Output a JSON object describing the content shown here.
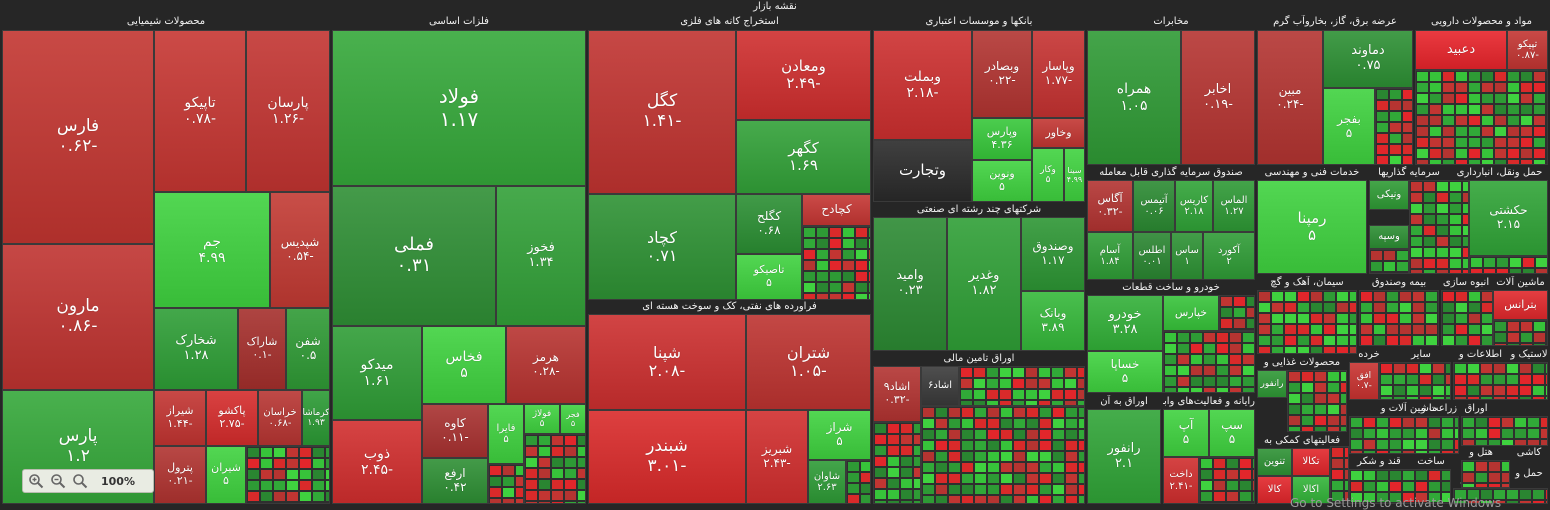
{
  "title": "نقشه بازار",
  "headers": [
    {
      "text": "محصولات شیمیایی",
      "l": 2,
      "t": 15,
      "w": 328
    },
    {
      "text": "فلزات اساسی",
      "l": 332,
      "t": 15,
      "w": 254
    },
    {
      "text": "استخراج کانه های فلزی",
      "l": 588,
      "t": 15,
      "w": 283
    },
    {
      "text": "بانکها و موسسات اعتباری",
      "l": 873,
      "t": 15,
      "w": 212
    },
    {
      "text": "مخابرات",
      "l": 1087,
      "t": 15,
      "w": 168
    },
    {
      "text": "عرضه برق، گاز، بخاروآب گرم",
      "l": 1257,
      "t": 15,
      "w": 156
    },
    {
      "text": "مواد و محصولات دارویی",
      "l": 1415,
      "t": 15,
      "w": 133
    },
    {
      "text": "فراورده های نفتی، کک و سوخت هسته ای",
      "l": 588,
      "t": 300,
      "w": 283
    },
    {
      "text": "شرکتهای چند رشته ای صنعتی",
      "l": 873,
      "t": 203,
      "w": 212
    },
    {
      "text": "اوراق تامین مالی",
      "l": 873,
      "t": 352,
      "w": 212
    },
    {
      "text": "صندوق سرمایه گذاری قابل معامله",
      "l": 1087,
      "t": 166,
      "w": 168
    },
    {
      "text": "خدمات فنی و مهندسی",
      "l": 1257,
      "t": 166,
      "w": 110
    },
    {
      "text": "سرمایه گذاریها",
      "l": 1369,
      "t": 166,
      "w": 80
    },
    {
      "text": "حمل ونقل، انبارداری",
      "l": 1451,
      "t": 166,
      "w": 97
    },
    {
      "text": "خودرو و ساخت قطعات",
      "l": 1087,
      "t": 281,
      "w": 168
    },
    {
      "text": "سیمان، آهک و گچ",
      "l": 1257,
      "t": 276,
      "w": 100
    },
    {
      "text": "بیمه وصندوق",
      "l": 1359,
      "t": 276,
      "w": 80
    },
    {
      "text": "انبوه سازی",
      "l": 1441,
      "t": 276,
      "w": 50
    },
    {
      "text": "ماشین آلات",
      "l": 1493,
      "t": 276,
      "w": 55
    },
    {
      "text": "رایانه و فعالیت‌های وابسته به آن",
      "l": 1163,
      "t": 395,
      "w": 92
    },
    {
      "text": "محصولات غذایی و",
      "l": 1257,
      "t": 356,
      "w": 90
    },
    {
      "text": "خرده",
      "l": 1349,
      "t": 348,
      "w": 40
    },
    {
      "text": "سایر",
      "l": 1391,
      "t": 348,
      "w": 60
    },
    {
      "text": "اطلاعات و",
      "l": 1453,
      "t": 348,
      "w": 55
    },
    {
      "text": "لاستیک و",
      "l": 1510,
      "t": 348,
      "w": 38
    },
    {
      "text": "اوراق به آن",
      "l": 1087,
      "t": 395,
      "w": 74
    },
    {
      "text": "فعالیتهای کمکی به",
      "l": 1257,
      "t": 434,
      "w": 90
    },
    {
      "text": "زراعت و",
      "l": 1419,
      "t": 402,
      "w": 40
    },
    {
      "text": "ماشین آلات و",
      "l": 1379,
      "t": 402,
      "w": 60
    },
    {
      "text": "اوراق",
      "l": 1461,
      "t": 402,
      "w": 30
    },
    {
      "text": "قند و شکر",
      "l": 1349,
      "t": 455,
      "w": 60
    },
    {
      "text": "ساخت",
      "l": 1411,
      "t": 455,
      "w": 40
    },
    {
      "text": "هتل و",
      "l": 1461,
      "t": 446,
      "w": 40
    },
    {
      "text": "کاشی",
      "l": 1510,
      "t": 446,
      "w": 38
    },
    {
      "text": "محصولات",
      "l": 1453,
      "t": 476,
      "w": 55
    },
    {
      "text": "حمل و",
      "l": 1510,
      "t": 467,
      "w": 38
    }
  ],
  "tiles": [
    {
      "sym": "فارس",
      "val": "-۰.۶۲",
      "c": "#c23530",
      "l": 2,
      "t": 30,
      "w": 152,
      "h": 214,
      "fs": 17
    },
    {
      "sym": "مارون",
      "val": "-۰.۸۶",
      "c": "#bf3330",
      "l": 2,
      "t": 244,
      "w": 152,
      "h": 146,
      "fs": 17
    },
    {
      "sym": "پارس",
      "val": "۱.۲",
      "c": "#35a83a",
      "l": 2,
      "t": 390,
      "w": 152,
      "h": 114,
      "fs": 17
    },
    {
      "sym": "تاپیکو",
      "val": "-۰.۷۸",
      "c": "#c63632",
      "l": 154,
      "t": 30,
      "w": 92,
      "h": 162,
      "fs": 14
    },
    {
      "sym": "پارسان",
      "val": "-۱.۲۶",
      "c": "#c23431",
      "l": 246,
      "t": 30,
      "w": 84,
      "h": 162,
      "fs": 14
    },
    {
      "sym": "جم",
      "val": "۴.۹۹",
      "c": "#3fd23f",
      "l": 154,
      "t": 192,
      "w": 116,
      "h": 116,
      "fs": 14
    },
    {
      "sym": "شپدیس",
      "val": "-۰.۵۴",
      "c": "#c23a33",
      "l": 270,
      "t": 192,
      "w": 60,
      "h": 116,
      "fs": 12
    },
    {
      "sym": "شخارک",
      "val": "۱.۲۸",
      "c": "#2e9e36",
      "l": 154,
      "t": 308,
      "w": 84,
      "h": 82,
      "fs": 13
    },
    {
      "sym": "شاراک",
      "val": "-۰.۱",
      "c": "#a52f2c",
      "l": 238,
      "t": 308,
      "w": 48,
      "h": 82,
      "fs": 11
    },
    {
      "sym": "شفن",
      "val": "۰.۵",
      "c": "#2f9a35",
      "l": 286,
      "t": 308,
      "w": 44,
      "h": 82,
      "fs": 12
    },
    {
      "sym": "شیراز",
      "val": "-۱.۴۴",
      "c": "#c23431",
      "l": 154,
      "t": 390,
      "w": 52,
      "h": 56,
      "fs": 11
    },
    {
      "sym": "پاکشو",
      "val": "-۲.۷۵",
      "c": "#d52c2c",
      "l": 206,
      "t": 390,
      "w": 52,
      "h": 56,
      "fs": 11
    },
    {
      "sym": "خراسان",
      "val": "-۰.۶۸",
      "c": "#b73532",
      "l": 258,
      "t": 390,
      "w": 44,
      "h": 56,
      "fs": 10
    },
    {
      "sym": "کرماشا",
      "val": "۱.۹۳",
      "c": "#2b9a34",
      "l": 302,
      "t": 390,
      "w": 28,
      "h": 56,
      "fs": 9
    },
    {
      "sym": "پترول",
      "val": "-۰.۲۱",
      "c": "#b03330",
      "l": 154,
      "t": 446,
      "w": 52,
      "h": 58,
      "fs": 11
    },
    {
      "sym": "شیران",
      "val": "۵",
      "c": "#3fd23f",
      "l": 206,
      "t": 446,
      "w": 40,
      "h": 58,
      "fs": 11
    },
    {
      "sym": "فولاد",
      "val": "۱.۱۷",
      "c": "#35a83a",
      "l": 332,
      "t": 30,
      "w": 254,
      "h": 156,
      "fs": 20
    },
    {
      "sym": "فملی",
      "val": "۰.۳۱",
      "c": "#2f8f35",
      "l": 332,
      "t": 186,
      "w": 164,
      "h": 140,
      "fs": 18
    },
    {
      "sym": "فخوز",
      "val": "۱.۳۴",
      "c": "#32a038",
      "l": 496,
      "t": 186,
      "w": 90,
      "h": 140,
      "fs": 13
    },
    {
      "sym": "میدکو",
      "val": "۱.۶۱",
      "c": "#2f9d36",
      "l": 332,
      "t": 326,
      "w": 90,
      "h": 94,
      "fs": 14
    },
    {
      "sym": "فخاس",
      "val": "۵",
      "c": "#3fd23f",
      "l": 422,
      "t": 326,
      "w": 84,
      "h": 78,
      "fs": 14
    },
    {
      "sym": "هرمز",
      "val": "-۰.۲۸",
      "c": "#b73330",
      "l": 506,
      "t": 326,
      "w": 80,
      "h": 78,
      "fs": 12
    },
    {
      "sym": "ذوب",
      "val": "-۲.۴۵",
      "c": "#d12e2e",
      "l": 332,
      "t": 420,
      "w": 90,
      "h": 84,
      "fs": 14
    },
    {
      "sym": "کاوه",
      "val": "-۰.۱۱",
      "c": "#a83130",
      "l": 422,
      "t": 404,
      "w": 66,
      "h": 54,
      "fs": 12
    },
    {
      "sym": "ارفع",
      "val": "۰.۴۲",
      "c": "#2e8f34",
      "l": 422,
      "t": 458,
      "w": 66,
      "h": 46,
      "fs": 12
    },
    {
      "sym": "فایرا",
      "val": "۵",
      "c": "#3fd23f",
      "l": 488,
      "t": 404,
      "w": 36,
      "h": 60,
      "fs": 10
    },
    {
      "sym": "فولاژ",
      "val": "۵",
      "c": "#3fd23f",
      "l": 524,
      "t": 404,
      "w": 36,
      "h": 30,
      "fs": 9
    },
    {
      "sym": "فجر",
      "val": "۵",
      "c": "#3fd23f",
      "l": 560,
      "t": 404,
      "w": 26,
      "h": 30,
      "fs": 8
    },
    {
      "sym": "کگل",
      "val": "-۱.۴۱",
      "c": "#c03330",
      "l": 588,
      "t": 30,
      "w": 148,
      "h": 164,
      "fs": 17
    },
    {
      "sym": "ومعادن",
      "val": "-۲.۴۹",
      "c": "#cf2e2e",
      "l": 736,
      "t": 30,
      "w": 135,
      "h": 90,
      "fs": 15
    },
    {
      "sym": "کگهر",
      "val": "۱.۶۹",
      "c": "#32a138",
      "l": 736,
      "t": 120,
      "w": 135,
      "h": 74,
      "fs": 15
    },
    {
      "sym": "کچاد",
      "val": "۰.۷۱",
      "c": "#2e9234",
      "l": 588,
      "t": 194,
      "w": 148,
      "h": 106,
      "fs": 16
    },
    {
      "sym": "کگلح",
      "val": "۰.۶۸",
      "c": "#2b8f33",
      "l": 736,
      "t": 194,
      "w": 66,
      "h": 60,
      "fs": 12
    },
    {
      "sym": "کچادح",
      "val": "",
      "c": "#c53633",
      "l": 802,
      "t": 194,
      "w": 69,
      "h": 32,
      "fs": 12
    },
    {
      "sym": "تاصیکو",
      "val": "۵",
      "c": "#3fd23f",
      "l": 736,
      "t": 254,
      "w": 66,
      "h": 46,
      "fs": 11
    },
    {
      "sym": "شپنا",
      "val": "-۲.۰۸",
      "c": "#cc2f2f",
      "l": 588,
      "t": 314,
      "w": 158,
      "h": 96,
      "fs": 16
    },
    {
      "sym": "شتران",
      "val": "-۱.۰۵",
      "c": "#bd3330",
      "l": 746,
      "t": 314,
      "w": 125,
      "h": 96,
      "fs": 16
    },
    {
      "sym": "شبندر",
      "val": "-۳.۰۱",
      "c": "#d92a2a",
      "l": 588,
      "t": 410,
      "w": 158,
      "h": 94,
      "fs": 17
    },
    {
      "sym": "شبریز",
      "val": "-۲.۴۳",
      "c": "#d12e2e",
      "l": 746,
      "t": 410,
      "w": 62,
      "h": 94,
      "fs": 12
    },
    {
      "sym": "شراز",
      "val": "۵",
      "c": "#3fd23f",
      "l": 808,
      "t": 410,
      "w": 63,
      "h": 50,
      "fs": 12
    },
    {
      "sym": "شاوان",
      "val": "۲.۶۳",
      "c": "#2e9b36",
      "l": 808,
      "t": 460,
      "w": 38,
      "h": 44,
      "fs": 10
    },
    {
      "sym": "وبملت",
      "val": "-۲.۱۸",
      "c": "#cc2f2f",
      "l": 873,
      "t": 30,
      "w": 99,
      "h": 110,
      "fs": 14
    },
    {
      "sym": "وبصادر",
      "val": "-۰.۲۲",
      "c": "#b23431",
      "l": 972,
      "t": 30,
      "w": 60,
      "h": 88,
      "fs": 12
    },
    {
      "sym": "وپاسار",
      "val": "-۱.۷۷",
      "c": "#c53231",
      "l": 1032,
      "t": 30,
      "w": 53,
      "h": 88,
      "fs": 12
    },
    {
      "sym": "وتجارت",
      "val": "",
      "c": "#2a2a2a",
      "l": 873,
      "t": 140,
      "w": 99,
      "h": 62,
      "fs": 15
    },
    {
      "sym": "وپارس",
      "val": "۴.۳۶",
      "c": "#37c73a",
      "l": 972,
      "t": 118,
      "w": 60,
      "h": 42,
      "fs": 11
    },
    {
      "sym": "وخاور",
      "val": "",
      "c": "#c23632",
      "l": 1032,
      "t": 118,
      "w": 53,
      "h": 30,
      "fs": 11
    },
    {
      "sym": "ونوین",
      "val": "۵",
      "c": "#3fd23f",
      "l": 972,
      "t": 160,
      "w": 60,
      "h": 42,
      "fs": 11
    },
    {
      "sym": "وکار",
      "val": "۵",
      "c": "#3fd23f",
      "l": 1032,
      "t": 148,
      "w": 32,
      "h": 54,
      "fs": 9
    },
    {
      "sym": "سینا",
      "val": "۴.۹۹",
      "c": "#3fd23f",
      "l": 1064,
      "t": 148,
      "w": 21,
      "h": 54,
      "fs": 8
    },
    {
      "sym": "وامید",
      "val": "۰.۲۳",
      "c": "#2c8a33",
      "l": 873,
      "t": 217,
      "w": 74,
      "h": 134,
      "fs": 13
    },
    {
      "sym": "وغدیر",
      "val": "۱.۸۲",
      "c": "#2f9f36",
      "l": 947,
      "t": 217,
      "w": 74,
      "h": 134,
      "fs": 13
    },
    {
      "sym": "وصندوق",
      "val": "۱.۱۷",
      "c": "#2d9634",
      "l": 1021,
      "t": 217,
      "w": 64,
      "h": 74,
      "fs": 12
    },
    {
      "sym": "وبانک",
      "val": "۳.۸۹",
      "c": "#35b83a",
      "l": 1021,
      "t": 291,
      "w": 64,
      "h": 60,
      "fs": 12
    },
    {
      "sym": "اشاد۹",
      "val": "-۰.۳۲",
      "c": "#b23331",
      "l": 873,
      "t": 366,
      "w": 48,
      "h": 56,
      "fs": 11
    },
    {
      "sym": "اشاد۶",
      "val": "",
      "c": "#3a3a3a",
      "l": 921,
      "t": 366,
      "w": 38,
      "h": 40,
      "fs": 10
    },
    {
      "sym": "همراه",
      "val": "۱.۰۵",
      "c": "#2f9a35",
      "l": 1087,
      "t": 30,
      "w": 94,
      "h": 135,
      "fs": 14
    },
    {
      "sym": "اخابر",
      "val": "-۰.۱۹",
      "c": "#b53431",
      "l": 1181,
      "t": 30,
      "w": 74,
      "h": 135,
      "fs": 13
    },
    {
      "sym": "آگاس",
      "val": "-۰.۳۲",
      "c": "#b23331",
      "l": 1087,
      "t": 180,
      "w": 46,
      "h": 52,
      "fs": 11
    },
    {
      "sym": "آتیمس",
      "val": "۰.۰۶",
      "c": "#2b8a32",
      "l": 1133,
      "t": 180,
      "w": 42,
      "h": 52,
      "fs": 10
    },
    {
      "sym": "کاریس",
      "val": "۲.۱۸",
      "c": "#30a337",
      "l": 1175,
      "t": 180,
      "w": 38,
      "h": 52,
      "fs": 10
    },
    {
      "sym": "الماس",
      "val": "۱.۲۷",
      "c": "#2e9935",
      "l": 1213,
      "t": 180,
      "w": 42,
      "h": 52,
      "fs": 10
    },
    {
      "sym": "آسام",
      "val": "۱.۸۴",
      "c": "#2f9d36",
      "l": 1087,
      "t": 232,
      "w": 46,
      "h": 48,
      "fs": 10
    },
    {
      "sym": "اطلس",
      "val": "۰.۰۱",
      "c": "#2a8631",
      "l": 1133,
      "t": 232,
      "w": 38,
      "h": 48,
      "fs": 10
    },
    {
      "sym": "ساس",
      "val": "۱",
      "c": "#2d9234",
      "l": 1171,
      "t": 232,
      "w": 32,
      "h": 48,
      "fs": 10
    },
    {
      "sym": "آکورد",
      "val": "۲",
      "c": "#2f9c36",
      "l": 1203,
      "t": 232,
      "w": 52,
      "h": 48,
      "fs": 10
    },
    {
      "sym": "خودرو",
      "val": "۳.۲۸",
      "c": "#32b038",
      "l": 1087,
      "t": 295,
      "w": 76,
      "h": 56,
      "fs": 13
    },
    {
      "sym": "خپارس",
      "val": "",
      "c": "#37c33a",
      "l": 1163,
      "t": 295,
      "w": 56,
      "h": 36,
      "fs": 11
    },
    {
      "sym": "خساپا",
      "val": "۵",
      "c": "#3fd23f",
      "l": 1087,
      "t": 351,
      "w": 76,
      "h": 42,
      "fs": 12
    },
    {
      "sym": "رانفور",
      "val": "۲.۱",
      "c": "#30a437",
      "l": 1087,
      "t": 409,
      "w": 74,
      "h": 95,
      "fs": 13
    },
    {
      "sym": "آپ",
      "val": "۵",
      "c": "#3fd23f",
      "l": 1163,
      "t": 409,
      "w": 46,
      "h": 48,
      "fs": 12
    },
    {
      "sym": "سپ",
      "val": "۵",
      "c": "#3fd23f",
      "l": 1209,
      "t": 409,
      "w": 46,
      "h": 48,
      "fs": 12
    },
    {
      "sym": "داخت",
      "val": "-۲.۴۱",
      "c": "#d02e2e",
      "l": 1163,
      "t": 457,
      "w": 36,
      "h": 47,
      "fs": 10
    },
    {
      "sym": "مبین",
      "val": "-۰.۲۴",
      "c": "#b33431",
      "l": 1257,
      "t": 30,
      "w": 66,
      "h": 135,
      "fs": 12
    },
    {
      "sym": "دماوند",
      "val": "۰.۷۵",
      "c": "#2d9034",
      "l": 1323,
      "t": 30,
      "w": 90,
      "h": 58,
      "fs": 13
    },
    {
      "sym": "بفجر",
      "val": "۵",
      "c": "#3fd23f",
      "l": 1323,
      "t": 88,
      "w": 52,
      "h": 77,
      "fs": 12
    },
    {
      "sym": "رمپنا",
      "val": "۵",
      "c": "#3fd23f",
      "l": 1257,
      "t": 180,
      "w": 110,
      "h": 94,
      "fs": 15
    },
    {
      "sym": "حکشتی",
      "val": "۲.۱۵",
      "c": "#30a437",
      "l": 1469,
      "t": 180,
      "w": 79,
      "h": 76,
      "fs": 12
    },
    {
      "sym": "ونیکی",
      "val": "",
      "c": "#2f9b35",
      "l": 1369,
      "t": 180,
      "w": 40,
      "h": 30,
      "fs": 10
    },
    {
      "sym": "وسپه",
      "val": "",
      "c": "#2c8e33",
      "l": 1369,
      "t": 225,
      "w": 40,
      "h": 24,
      "fs": 10
    },
    {
      "sym": "دعبید",
      "val": "",
      "c": "#e8242b",
      "l": 1415,
      "t": 30,
      "w": 92,
      "h": 40,
      "fs": 13
    },
    {
      "sym": "تپیکو",
      "val": "-۰.۸۷",
      "c": "#c33532",
      "l": 1507,
      "t": 30,
      "w": 41,
      "h": 40,
      "fs": 10
    },
    {
      "sym": "بترانس",
      "val": "",
      "c": "#e0282c",
      "l": 1493,
      "t": 290,
      "w": 55,
      "h": 30,
      "fs": 11
    },
    {
      "sym": "افق",
      "val": "-۰.۷",
      "c": "#c83230",
      "l": 1349,
      "t": 362,
      "w": 30,
      "h": 38,
      "fs": 9
    },
    {
      "sym": "تکالا",
      "val": "",
      "c": "#e2262b",
      "l": 1292,
      "t": 448,
      "w": 38,
      "h": 28,
      "fs": 10
    },
    {
      "sym": "تنوین",
      "val": "",
      "c": "#2d9134",
      "l": 1257,
      "t": 448,
      "w": 35,
      "h": 28,
      "fs": 10
    },
    {
      "sym": "کالا",
      "val": "",
      "c": "#e2262b",
      "l": 1257,
      "t": 476,
      "w": 35,
      "h": 28,
      "fs": 10
    },
    {
      "sym": "اکالا",
      "val": "",
      "c": "#33b439",
      "l": 1292,
      "t": 476,
      "w": 38,
      "h": 28,
      "fs": 10
    },
    {
      "sym": "رانفور",
      "val": "",
      "c": "#2e9835",
      "l": 1257,
      "t": 370,
      "w": 30,
      "h": 28,
      "fs": 9
    }
  ],
  "mosaics": [
    {
      "l": 246,
      "t": 446,
      "w": 84,
      "h": 58
    },
    {
      "l": 524,
      "t": 434,
      "w": 62,
      "h": 70
    },
    {
      "l": 488,
      "t": 464,
      "w": 36,
      "h": 40
    },
    {
      "l": 802,
      "t": 226,
      "w": 69,
      "h": 74
    },
    {
      "l": 846,
      "t": 460,
      "w": 25,
      "h": 44
    },
    {
      "l": 921,
      "t": 406,
      "w": 164,
      "h": 98
    },
    {
      "l": 959,
      "t": 366,
      "w": 126,
      "h": 40
    },
    {
      "l": 873,
      "t": 422,
      "w": 48,
      "h": 82
    },
    {
      "l": 1163,
      "t": 331,
      "w": 92,
      "h": 62
    },
    {
      "l": 1219,
      "t": 295,
      "w": 36,
      "h": 36
    },
    {
      "l": 1199,
      "t": 457,
      "w": 56,
      "h": 47
    },
    {
      "l": 1375,
      "t": 88,
      "w": 38,
      "h": 77
    },
    {
      "l": 1415,
      "t": 70,
      "w": 133,
      "h": 95
    },
    {
      "l": 1409,
      "t": 180,
      "w": 60,
      "h": 94
    },
    {
      "l": 1369,
      "t": 249,
      "w": 40,
      "h": 25
    },
    {
      "l": 1469,
      "t": 256,
      "w": 79,
      "h": 18
    },
    {
      "l": 1257,
      "t": 290,
      "w": 100,
      "h": 64
    },
    {
      "l": 1359,
      "t": 290,
      "w": 80,
      "h": 56
    },
    {
      "l": 1441,
      "t": 290,
      "w": 52,
      "h": 56
    },
    {
      "l": 1493,
      "t": 320,
      "w": 55,
      "h": 26
    },
    {
      "l": 1287,
      "t": 370,
      "w": 60,
      "h": 62
    },
    {
      "l": 1379,
      "t": 362,
      "w": 72,
      "h": 38
    },
    {
      "l": 1453,
      "t": 362,
      "w": 95,
      "h": 38
    },
    {
      "l": 1349,
      "t": 416,
      "w": 110,
      "h": 38
    },
    {
      "l": 1461,
      "t": 416,
      "w": 87,
      "h": 30
    },
    {
      "l": 1330,
      "t": 446,
      "w": 19,
      "h": 58
    },
    {
      "l": 1349,
      "t": 469,
      "w": 102,
      "h": 35
    },
    {
      "l": 1453,
      "t": 488,
      "w": 95,
      "h": 16
    },
    {
      "l": 1461,
      "t": 460,
      "w": 49,
      "h": 28
    }
  ],
  "zoom": {
    "level": "100%"
  },
  "watermark": "Go to Settings to activate Windows"
}
